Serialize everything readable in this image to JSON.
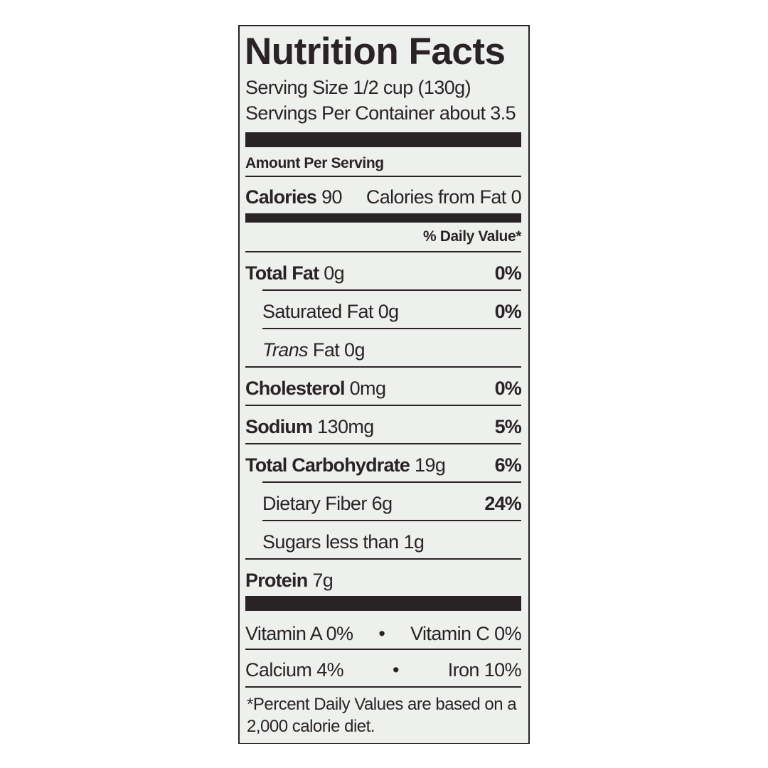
{
  "title": "Nutrition Facts",
  "serving_size": "Serving Size 1/2 cup (130g)",
  "servings_per_container": "Servings Per Container about 3.5",
  "amount_per_serving": "Amount Per Serving",
  "calories": {
    "label": "Calories",
    "value": "90",
    "from_fat": "Calories from Fat 0"
  },
  "daily_value_header": "% Daily Value*",
  "nutrients": [
    {
      "name": "Total Fat",
      "amount": "0g",
      "dv": "0%"
    },
    {
      "name": "Saturated Fat",
      "amount": "0g",
      "dv": "0%"
    },
    {
      "name": "Trans",
      "amount": "Fat 0g",
      "dv": ""
    },
    {
      "name": "Cholesterol",
      "amount": "0mg",
      "dv": "0%"
    },
    {
      "name": "Sodium",
      "amount": "130mg",
      "dv": "5%"
    },
    {
      "name": "Total Carbohydrate",
      "amount": "19g",
      "dv": "6%"
    },
    {
      "name": "Dietary Fiber",
      "amount": "6g",
      "dv": "24%"
    },
    {
      "name": "Sugars less than",
      "amount": "1g",
      "dv": ""
    },
    {
      "name": "Protein",
      "amount": "7g",
      "dv": ""
    }
  ],
  "vitamins": [
    {
      "left": "Vitamin A 0%",
      "right": "Vitamin C 0%"
    },
    {
      "left": "Calcium 4%",
      "right": "Iron 10%"
    }
  ],
  "bullet": "•",
  "footnote": [
    "*Percent Daily Values are based on a",
    "2,000 calorie diet."
  ]
}
